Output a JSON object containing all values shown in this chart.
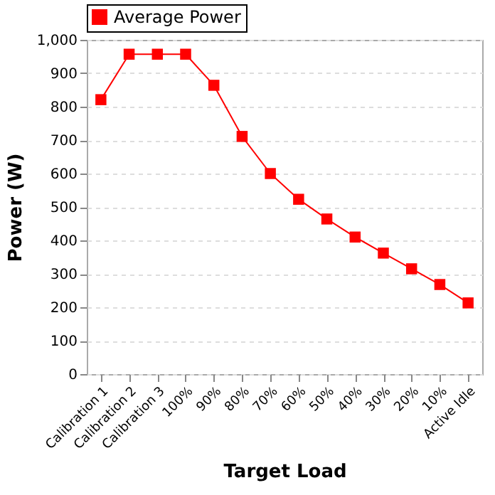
{
  "chart_data": {
    "type": "line",
    "xlabel": "Target Load",
    "ylabel": "Power (W)",
    "categories": [
      "Calibration 1",
      "Calibration 2",
      "Calibration 3",
      "100%",
      "90%",
      "80%",
      "70%",
      "60%",
      "50%",
      "40%",
      "30%",
      "20%",
      "10%",
      "Active Idle"
    ],
    "series": [
      {
        "name": "Average Power",
        "color": "#ff0000",
        "values": [
          821,
          957,
          957,
          957,
          864,
          711,
          600,
          523,
          464,
          410,
          362,
          315,
          268,
          213
        ]
      }
    ],
    "ylim": [
      0,
      1000
    ],
    "yticks": [
      0,
      100,
      200,
      300,
      400,
      500,
      600,
      700,
      800,
      900,
      {
        "value": 1000,
        "label": "1,000"
      }
    ],
    "grid": "y",
    "legend": "top",
    "marker": "square",
    "line_style": "solid"
  }
}
